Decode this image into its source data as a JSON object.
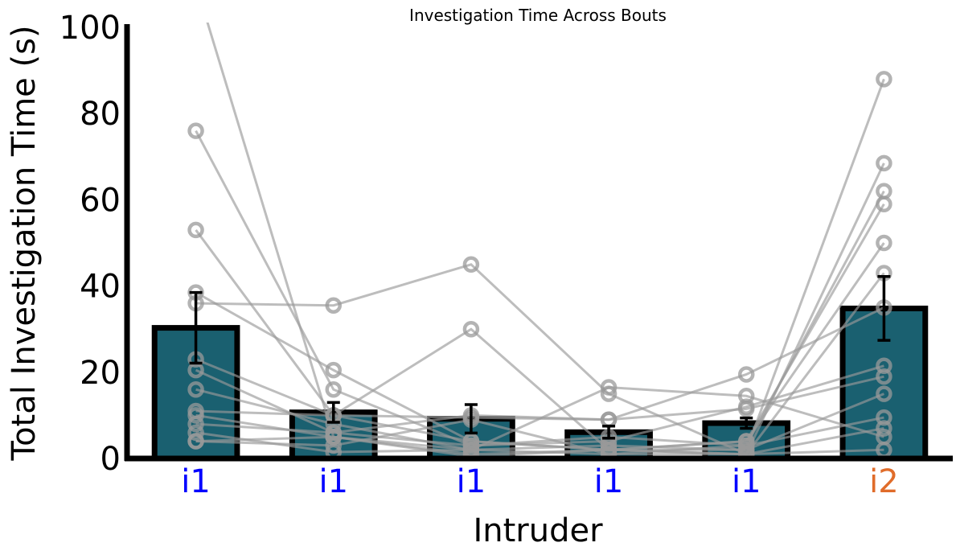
{
  "chart_data": {
    "type": "bar",
    "title": "Investigation Time Across Bouts",
    "xlabel": "Intruder",
    "ylabel": "Total Investigation Time (s)",
    "ylim": [
      0,
      100
    ],
    "yticks": [
      0,
      20,
      40,
      60,
      80,
      100
    ],
    "categories": [
      "i1",
      "i1",
      "i1",
      "i1",
      "i1",
      "i2"
    ],
    "category_colors": [
      "#0000ff",
      "#0000ff",
      "#0000ff",
      "#0000ff",
      "#0000ff",
      "#e06c2a"
    ],
    "bar_color": "#1a6070",
    "bar_edge_color": "#000000",
    "line_color": "#999999",
    "grid": false,
    "legend": "none",
    "means": [
      30.3,
      10.7,
      9.2,
      6.1,
      8.2,
      34.8
    ],
    "errors": [
      8.2,
      2.3,
      3.3,
      1.4,
      1.2,
      7.4
    ],
    "subjects": [
      [
        110,
        5,
        0.5,
        2,
        2,
        88
      ],
      [
        76,
        16,
        3,
        5,
        3,
        62
      ],
      [
        53,
        10,
        4,
        2,
        4,
        59
      ],
      [
        38.5,
        20.5,
        4,
        2,
        1,
        68.5
      ],
      [
        36,
        35.5,
        45,
        15,
        1,
        43
      ],
      [
        23,
        10,
        30,
        2,
        4,
        50
      ],
      [
        20.5,
        6,
        10,
        9,
        19.5,
        35
      ],
      [
        16,
        8,
        2,
        16.5,
        14.5,
        5
      ],
      [
        11,
        10,
        9.5,
        9,
        11.5,
        19
      ],
      [
        10,
        5,
        1,
        2,
        1,
        2
      ],
      [
        8,
        6,
        3,
        4,
        12,
        21.5
      ],
      [
        6,
        1.5,
        2,
        3,
        2,
        15
      ],
      [
        4,
        3,
        9,
        1,
        3,
        9.5
      ],
      [
        4,
        5,
        2,
        1,
        1,
        7
      ]
    ]
  }
}
